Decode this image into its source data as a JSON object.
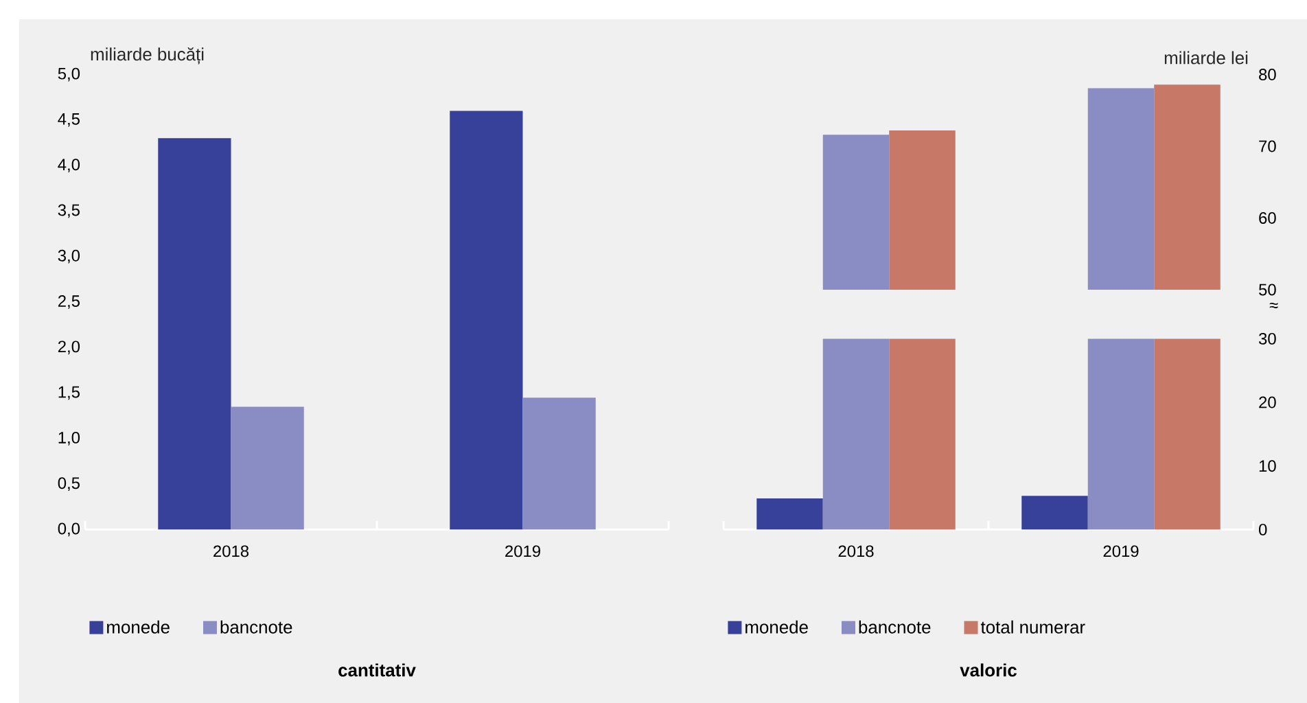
{
  "chart_data": [
    {
      "type": "bar",
      "title": "cantitativ",
      "ylabel": "miliarde bucăți",
      "categories": [
        "2018",
        "2019"
      ],
      "series": [
        {
          "name": "monede",
          "color": "#38419a",
          "values": [
            4.3,
            4.6
          ]
        },
        {
          "name": "bancnote",
          "color": "#8a8cc4",
          "values": [
            1.35,
            1.45
          ]
        }
      ],
      "ylim": [
        0,
        5
      ],
      "yticks": [
        {
          "value": 0,
          "label": "0,0"
        },
        {
          "value": 0.5,
          "label": "0,5"
        },
        {
          "value": 1,
          "label": "1,0"
        },
        {
          "value": 1.5,
          "label": "1,5"
        },
        {
          "value": 2,
          "label": "2,0"
        },
        {
          "value": 2.5,
          "label": "2,5"
        },
        {
          "value": 3,
          "label": "3,0"
        },
        {
          "value": 3.5,
          "label": "3,5"
        },
        {
          "value": 4,
          "label": "4,0"
        },
        {
          "value": 4.5,
          "label": "4,5"
        },
        {
          "value": 5,
          "label": "5,0"
        }
      ],
      "legend": "bottom"
    },
    {
      "type": "bar",
      "ylabel": "miliarde lei",
      "categories": [
        "2018",
        "2019"
      ],
      "series": [
        {
          "color": "#8a8cc4",
          "values": [
            71.6,
            78.1
          ]
        },
        {
          "color": "#c77866",
          "values": [
            72.2,
            78.6
          ]
        }
      ],
      "ylim": [
        50,
        80
      ],
      "yticks": [
        50,
        60,
        70,
        80
      ],
      "tick_labels": "y",
      "annotations": [
        "≈"
      ]
    },
    {
      "type": "bar",
      "title": "valoric",
      "categories": [
        "2018",
        "2019"
      ],
      "series": [
        {
          "name": "monede",
          "color": "#38419a",
          "values": [
            4.9,
            5.3
          ]
        },
        {
          "name": "bancnote",
          "color": "#8a8cc4",
          "values": [
            30,
            30
          ]
        },
        {
          "name": "total numerar",
          "color": "#c77866",
          "values": [
            30,
            30
          ]
        }
      ],
      "ylim": [
        0,
        30
      ],
      "yticks": [
        0,
        10,
        20,
        30
      ],
      "legend": "bottom"
    }
  ]
}
